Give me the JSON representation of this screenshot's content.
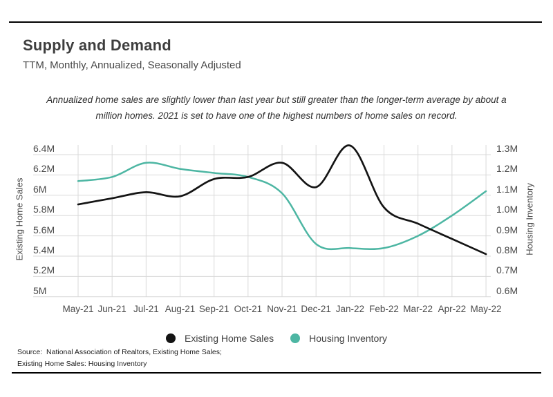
{
  "header": {
    "title": "Supply and Demand",
    "subtitle": "TTM, Monthly, Annualized, Seasonally Adjusted"
  },
  "annotation": {
    "line1": "Annualized home sales are slightly lower than last year but still greater than the longer-term average by about a",
    "line2": "million homes. 2021 is set to have one of the highest numbers of home sales on record."
  },
  "chart_data": {
    "type": "line",
    "x": [
      "May-21",
      "Jun-21",
      "Jul-21",
      "Aug-21",
      "Sep-21",
      "Oct-21",
      "Nov-21",
      "Dec-21",
      "Jan-22",
      "Feb-22",
      "Mar-22",
      "Apr-22",
      "May-22"
    ],
    "series": [
      {
        "name": "Existing Home Sales",
        "axis": "left",
        "color": "#141414",
        "values": [
          5.91,
          5.97,
          6.03,
          5.99,
          6.16,
          6.18,
          6.32,
          6.08,
          6.49,
          5.88,
          5.72,
          5.57,
          5.42
        ]
      },
      {
        "name": "Housing Inventory",
        "axis": "right",
        "color": "#4db6a3",
        "values": [
          1.17,
          1.19,
          1.26,
          1.23,
          1.21,
          1.19,
          1.11,
          0.86,
          0.84,
          0.84,
          0.9,
          1.0,
          1.12
        ]
      }
    ],
    "left_axis": {
      "title": "Existing Home Sales",
      "max": 6.4,
      "min": 5.0,
      "step": 0.2,
      "ticks": [
        "6.4M",
        "6.2M",
        "6M",
        "5.8M",
        "5.6M",
        "5.4M",
        "5.2M",
        "5M"
      ]
    },
    "right_axis": {
      "title": "Housing Inventory",
      "max": 1.3,
      "min": 0.6,
      "step": 0.1,
      "ticks": [
        "1.3M",
        "1.2M",
        "1.1M",
        "1.0M",
        "0.9M",
        "0.8M",
        "0.7M",
        "0.6M"
      ]
    },
    "grid": true,
    "legend_position": "bottom",
    "title": "Supply and Demand"
  },
  "legend": {
    "items": [
      {
        "label": "Existing Home Sales",
        "color": "#141414"
      },
      {
        "label": "Housing Inventory",
        "color": "#4db6a3"
      }
    ]
  },
  "source": {
    "line1": "Source:  National Association of Realtors, Existing Home Sales;",
    "line2": "Existing Home Sales: Housing Inventory"
  },
  "colors": {
    "grid": "#d9d9d9",
    "rule": "#000000",
    "title_text": "#3e3e3e",
    "axis_text": "#4a4a4a"
  }
}
